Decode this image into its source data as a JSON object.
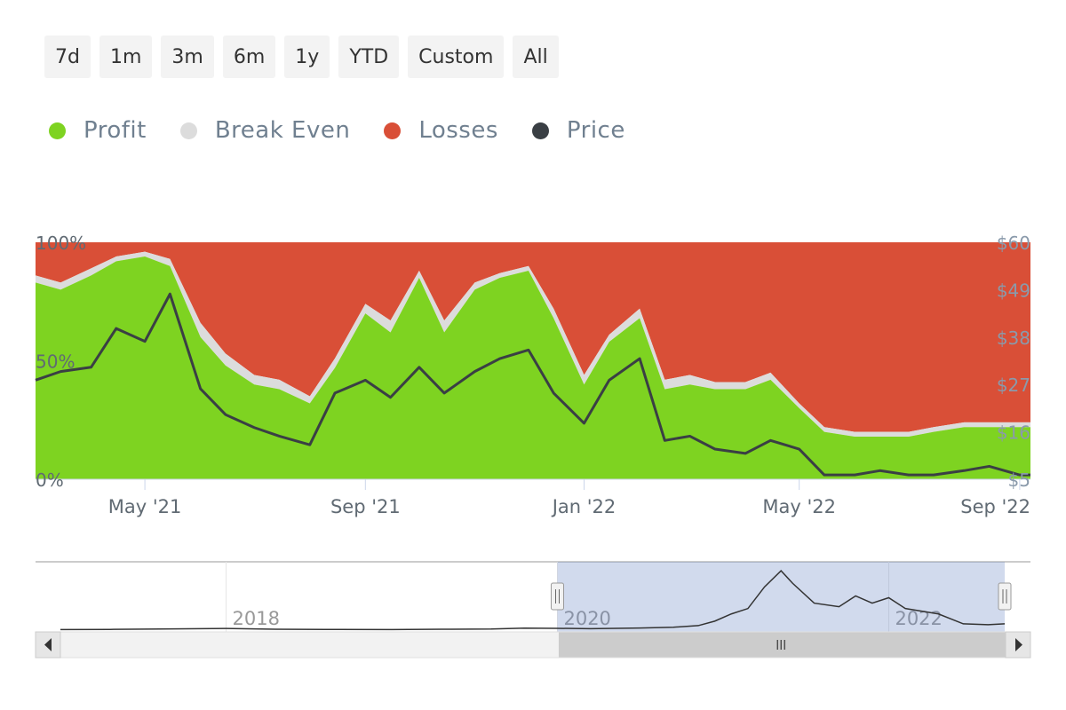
{
  "range_buttons": [
    "7d",
    "1m",
    "3m",
    "6m",
    "1y",
    "YTD",
    "Custom",
    "All"
  ],
  "legend": [
    {
      "label": "Profit",
      "color": "#7ed321"
    },
    {
      "label": "Break Even",
      "color": "#dcdcdc"
    },
    {
      "label": "Losses",
      "color": "#d94f37"
    },
    {
      "label": "Price",
      "color": "#3a3f44"
    }
  ],
  "chart_data": {
    "type": "area",
    "stacked_percent": true,
    "x_ticks": [
      "May '21",
      "Sep '21",
      "Jan '22",
      "May '22",
      "Sep '22"
    ],
    "x_tick_dates": [
      "2021-05-01",
      "2021-09-01",
      "2022-01-01",
      "2022-05-01",
      "2022-09-01"
    ],
    "x_range": [
      "2021-03-01",
      "2022-09-07"
    ],
    "left_axis": {
      "ticks": [
        "0%",
        "50%",
        "100%"
      ],
      "range": [
        0,
        100
      ]
    },
    "right_axis": {
      "ticks": [
        "$5",
        "$16",
        "$27",
        "$38",
        "$49",
        "$60"
      ],
      "range": [
        5,
        60
      ]
    },
    "dates": [
      "2021-03-01",
      "2021-03-15",
      "2021-04-01",
      "2021-04-15",
      "2021-05-01",
      "2021-05-15",
      "2021-06-01",
      "2021-06-15",
      "2021-07-01",
      "2021-07-15",
      "2021-08-01",
      "2021-08-15",
      "2021-09-01",
      "2021-09-15",
      "2021-10-01",
      "2021-10-15",
      "2021-11-01",
      "2021-11-15",
      "2021-12-01",
      "2021-12-15",
      "2022-01-01",
      "2022-01-15",
      "2022-02-01",
      "2022-02-15",
      "2022-03-01",
      "2022-03-15",
      "2022-04-01",
      "2022-04-15",
      "2022-05-01",
      "2022-05-15",
      "2022-06-01",
      "2022-06-15",
      "2022-07-01",
      "2022-07-15",
      "2022-08-01",
      "2022-08-15",
      "2022-09-01",
      "2022-09-07"
    ],
    "series": [
      {
        "name": "Profit",
        "values": [
          83,
          80,
          86,
          92,
          94,
          90,
          60,
          48,
          40,
          38,
          32,
          47,
          70,
          62,
          85,
          62,
          80,
          85,
          88,
          68,
          40,
          58,
          68,
          38,
          40,
          38,
          38,
          42,
          30,
          20,
          18,
          18,
          18,
          20,
          22,
          22,
          22,
          22
        ]
      },
      {
        "name": "Break Even",
        "values": [
          3,
          3,
          3,
          2,
          2,
          3,
          6,
          5,
          4,
          4,
          3,
          4,
          4,
          5,
          3,
          5,
          3,
          2,
          2,
          4,
          4,
          3,
          4,
          4,
          4,
          3,
          3,
          3,
          2,
          2,
          2,
          2,
          2,
          2,
          2,
          2,
          2,
          2
        ]
      },
      {
        "name": "Losses",
        "values": [
          14,
          17,
          11,
          6,
          4,
          7,
          34,
          47,
          56,
          58,
          65,
          49,
          26,
          33,
          12,
          33,
          17,
          13,
          10,
          28,
          56,
          39,
          28,
          58,
          56,
          59,
          59,
          55,
          68,
          78,
          80,
          80,
          80,
          78,
          76,
          76,
          76,
          76
        ]
      },
      {
        "name": "Price",
        "values": [
          28,
          30,
          31,
          40,
          37,
          48,
          26,
          20,
          17,
          15,
          13,
          25,
          28,
          24,
          31,
          25,
          30,
          33,
          35,
          25,
          18,
          28,
          33,
          14,
          15,
          12,
          11,
          14,
          12,
          6,
          6,
          7,
          6,
          6,
          7,
          8,
          6,
          6
        ]
      }
    ]
  },
  "navigator": {
    "labels": [
      "2018",
      "2020",
      "2022"
    ],
    "label_years": [
      2018,
      2020,
      2022
    ],
    "year_range": [
      2017.0,
      2022.7
    ],
    "selection": [
      2020.0,
      2022.7
    ],
    "price_points": [
      [
        2017.0,
        0.3
      ],
      [
        2017.3,
        0.4
      ],
      [
        2017.6,
        0.6
      ],
      [
        2018.0,
        0.9
      ],
      [
        2018.3,
        0.5
      ],
      [
        2018.6,
        0.4
      ],
      [
        2019.0,
        0.3
      ],
      [
        2019.3,
        0.5
      ],
      [
        2019.6,
        0.6
      ],
      [
        2019.8,
        1.1
      ],
      [
        2020.0,
        1.0
      ],
      [
        2020.2,
        0.8
      ],
      [
        2020.5,
        1.2
      ],
      [
        2020.7,
        1.6
      ],
      [
        2020.85,
        2.5
      ],
      [
        2020.95,
        5.0
      ],
      [
        2021.05,
        9.0
      ],
      [
        2021.15,
        12.0
      ],
      [
        2021.25,
        24.0
      ],
      [
        2021.35,
        33.0
      ],
      [
        2021.42,
        26.0
      ],
      [
        2021.55,
        15.0
      ],
      [
        2021.7,
        13.0
      ],
      [
        2021.8,
        19.0
      ],
      [
        2021.9,
        15.0
      ],
      [
        2022.0,
        18.0
      ],
      [
        2022.1,
        12.0
      ],
      [
        2022.3,
        9.0
      ],
      [
        2022.45,
        3.5
      ],
      [
        2022.6,
        3.0
      ],
      [
        2022.7,
        3.5
      ]
    ],
    "price_max": 35
  }
}
